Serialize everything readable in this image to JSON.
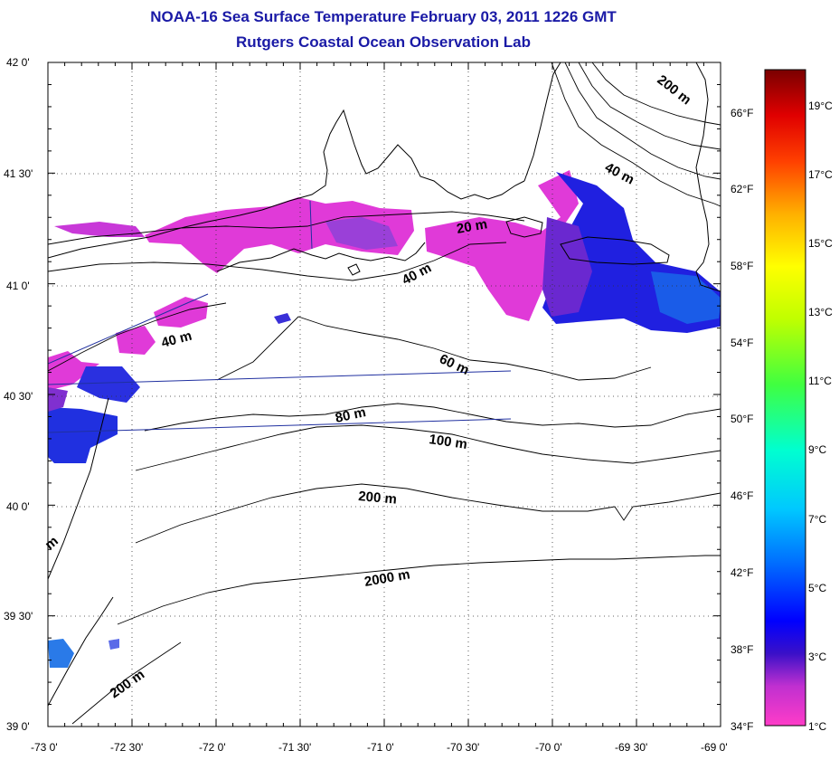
{
  "header": {
    "title": "NOAA-16 Sea Surface Temperature February 03, 2011 1226 GMT",
    "subtitle": "Rutgers Coastal Ocean Observation Lab"
  },
  "map": {
    "lat_labels": [
      "42 0'",
      "41 30'",
      "41 0'",
      "40 30'",
      "40 0'",
      "39 30'",
      "39 0'"
    ],
    "lon_labels": [
      "-73 0'",
      "-72 30'",
      "-72 0'",
      "-71 30'",
      "-71 0'",
      "-70 30'",
      "-70 0'",
      "-69 30'",
      "-69 0'"
    ],
    "lat_range": [
      39.0,
      42.0
    ],
    "lon_range": [
      -73.0,
      -69.0
    ],
    "grid": "dotted",
    "contour_labels": [
      "20 m",
      "40 m",
      "40 m",
      "40 m",
      "60 m",
      "80 m",
      "100 m",
      "200 m",
      "200 m",
      "200 m",
      "2000 m",
      "m"
    ]
  },
  "colorbar": {
    "fahrenheit_labels": [
      "66°F",
      "62°F",
      "58°F",
      "54°F",
      "50°F",
      "46°F",
      "42°F",
      "38°F",
      "34°F"
    ],
    "celsius_labels": [
      "19°C",
      "17°C",
      "15°C",
      "13°C",
      "11°C",
      "9°C",
      "7°C",
      "5°C",
      "3°C",
      "1°C"
    ],
    "colors": [
      "#8b0000",
      "#ff0000",
      "#ff8000",
      "#ffff00",
      "#80ff00",
      "#00ff80",
      "#00ffff",
      "#0080ff",
      "#0000ff",
      "#8000c0",
      "#ff00ff"
    ]
  }
}
